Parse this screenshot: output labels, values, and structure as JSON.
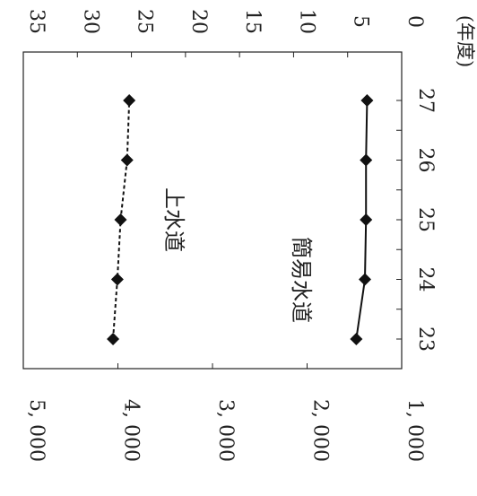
{
  "chart_data": {
    "type": "line",
    "orientation": "rotated-90-clockwise",
    "x": {
      "label": "(年度)",
      "categories": [
        "23",
        "24",
        "25",
        "26",
        "27"
      ]
    },
    "y_left": {
      "ticks": [
        "1, 000",
        "2, 000",
        "3, 000",
        "4, 000",
        "5, 000"
      ],
      "range": [
        1000,
        5000
      ]
    },
    "y_right": {
      "ticks": [
        "0",
        "5",
        "10",
        "15",
        "20",
        "25",
        "30",
        "35"
      ],
      "range": [
        0,
        35
      ]
    },
    "series": [
      {
        "name": "上水道",
        "axis": "right",
        "line_style": "dashed",
        "marker": "diamond",
        "values": [
          26.7,
          26.3,
          26.0,
          25.4,
          25.2
        ]
      },
      {
        "name": "簡易水道",
        "axis": "right",
        "line_style": "solid",
        "marker": "diamond",
        "values": [
          4.2,
          3.4,
          3.3,
          3.3,
          3.2
        ]
      }
    ],
    "grid": false,
    "legend": "none (series labelled directly inside the plot)"
  }
}
